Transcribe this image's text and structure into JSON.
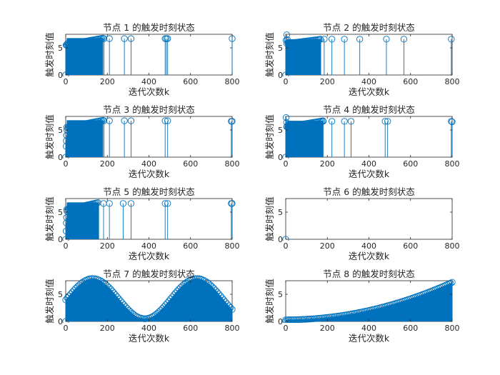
{
  "chart_data": [
    {
      "type": "stem",
      "title": "节点 1 的触发时刻状态",
      "xlabel": "迭代次数k",
      "ylabel": "触发时刻值",
      "xlim": [
        0,
        800
      ],
      "ylim": [
        0,
        7.5
      ],
      "xticks": [
        0,
        200,
        400,
        600,
        800
      ],
      "yticks": [
        0,
        5
      ],
      "dense_region": {
        "x_start": 5,
        "x_end": 180,
        "y_start": 5.6,
        "y_end": 6.8
      },
      "points": [
        [
          0,
          0
        ],
        [
          2,
          5.5
        ],
        [
          5,
          5.6
        ],
        [
          8,
          5.8
        ],
        [
          184,
          6.7
        ],
        [
          210,
          6.7
        ],
        [
          282,
          6.7
        ],
        [
          314,
          6.7
        ],
        [
          478,
          6.7
        ],
        [
          484,
          6.7
        ],
        [
          490,
          6.7
        ],
        [
          800,
          6.7
        ]
      ]
    },
    {
      "type": "stem",
      "title": "节点 2 的触发时刻状态",
      "xlabel": "迭代次数k",
      "ylabel": "触发时刻值",
      "xlim": [
        0,
        800
      ],
      "ylim": [
        0,
        7.5
      ],
      "xticks": [
        0,
        200,
        400,
        600,
        800
      ],
      "yticks": [
        0,
        5
      ],
      "dense_region": {
        "x_start": 5,
        "x_end": 170,
        "y_start": 5.8,
        "y_end": 6.6
      },
      "points": [
        [
          0,
          0
        ],
        [
          2,
          6.4
        ],
        [
          5,
          7.4
        ],
        [
          8,
          6.5
        ],
        [
          185,
          6.6
        ],
        [
          222,
          6.6
        ],
        [
          282,
          6.6
        ],
        [
          356,
          6.6
        ],
        [
          484,
          6.6
        ],
        [
          568,
          6.6
        ],
        [
          796,
          6.6
        ]
      ]
    },
    {
      "type": "stem",
      "title": "节点 3 的触发时刻状态",
      "xlabel": "迭代次数k",
      "ylabel": "触发时刻值",
      "xlim": [
        0,
        800
      ],
      "ylim": [
        0,
        7.5
      ],
      "xticks": [
        0,
        200,
        400,
        600,
        800
      ],
      "yticks": [
        0,
        5
      ],
      "dense_region": {
        "x_start": 5,
        "x_end": 180,
        "y_start": 5.5,
        "y_end": 6.8
      },
      "points": [
        [
          0,
          0
        ],
        [
          2,
          2
        ],
        [
          3,
          3
        ],
        [
          4,
          4
        ],
        [
          6,
          5
        ],
        [
          184,
          6.7
        ],
        [
          210,
          6.7
        ],
        [
          282,
          6.7
        ],
        [
          314,
          6.7
        ],
        [
          478,
          6.7
        ],
        [
          490,
          6.7
        ],
        [
          796,
          6.6
        ],
        [
          800,
          6.6
        ]
      ]
    },
    {
      "type": "stem",
      "title": "节点 4 的触发时刻状态",
      "xlabel": "迭代次数k",
      "ylabel": "触发时刻值",
      "xlim": [
        0,
        800
      ],
      "ylim": [
        0,
        7.5
      ],
      "xticks": [
        0,
        200,
        400,
        600,
        800
      ],
      "yticks": [
        0,
        5
      ],
      "dense_region": {
        "x_start": 5,
        "x_end": 180,
        "y_start": 5.6,
        "y_end": 6.7
      },
      "points": [
        [
          0,
          0
        ],
        [
          2,
          7.3
        ],
        [
          4,
          6.4
        ],
        [
          6,
          5.7
        ],
        [
          180,
          6.6
        ],
        [
          222,
          6.6
        ],
        [
          282,
          6.6
        ],
        [
          314,
          6.6
        ],
        [
          478,
          6.6
        ],
        [
          490,
          6.6
        ],
        [
          796,
          6.6
        ],
        [
          800,
          6.5
        ]
      ]
    },
    {
      "type": "stem",
      "title": "节点 5 的触发时刻状态",
      "xlabel": "迭代次数k",
      "ylabel": "触发时刻值",
      "xlim": [
        0,
        800
      ],
      "ylim": [
        0,
        7.5
      ],
      "xticks": [
        0,
        200,
        400,
        600,
        800
      ],
      "yticks": [
        0,
        5
      ],
      "dense_region": {
        "x_start": 5,
        "x_end": 160,
        "y_start": 5.5,
        "y_end": 6.8
      },
      "points": [
        [
          0,
          0
        ],
        [
          2,
          1.5
        ],
        [
          3,
          3
        ],
        [
          4,
          4
        ],
        [
          6,
          5.2
        ],
        [
          182,
          6.6
        ],
        [
          210,
          6.6
        ],
        [
          276,
          6.6
        ],
        [
          314,
          6.6
        ],
        [
          478,
          6.6
        ],
        [
          490,
          6.6
        ],
        [
          796,
          6.6
        ],
        [
          800,
          6.6
        ]
      ]
    },
    {
      "type": "stem",
      "title": "节点 6 的触发时刻状态",
      "xlabel": "迭代次数k",
      "ylabel": "触发时刻值",
      "xlim": [
        0,
        800
      ],
      "ylim": [
        0,
        7.5
      ],
      "xticks": [
        0,
        200,
        400,
        600,
        800
      ],
      "yticks": [
        0,
        5
      ],
      "dense_region": null,
      "points": [
        [
          0,
          0
        ]
      ]
    },
    {
      "type": "stem",
      "title": "节点 7 的触发时刻状态",
      "xlabel": "迭代次数k",
      "ylabel": "触发时刻值",
      "xlim": [
        0,
        800
      ],
      "ylim": [
        0,
        7.5
      ],
      "xticks": [
        0,
        200,
        400,
        600,
        800
      ],
      "yticks": [
        0,
        5
      ],
      "envelope": {
        "shape": "sine",
        "offset": 4.2,
        "amplitude": 3.7,
        "period": 500,
        "peak_x": 130
      },
      "dense_region": {
        "x_start": 0,
        "x_end": 800,
        "y_start": 0,
        "y_end": 0
      },
      "points": [
        [
          0,
          0
        ]
      ]
    },
    {
      "type": "stem",
      "title": "节点 8 的触发时刻状态",
      "xlabel": "迭代次数k",
      "ylabel": "触发时刻值",
      "xlim": [
        0,
        800
      ],
      "ylim": [
        0,
        7.5
      ],
      "xticks": [
        0,
        200,
        400,
        600,
        800
      ],
      "yticks": [
        0,
        5
      ],
      "envelope": {
        "shape": "quadratic",
        "y_start": 0.3,
        "y_end": 7.2
      },
      "dense_region": {
        "x_start": 0,
        "x_end": 800,
        "y_start": 0,
        "y_end": 0
      },
      "points": [
        [
          0,
          0
        ]
      ]
    }
  ]
}
